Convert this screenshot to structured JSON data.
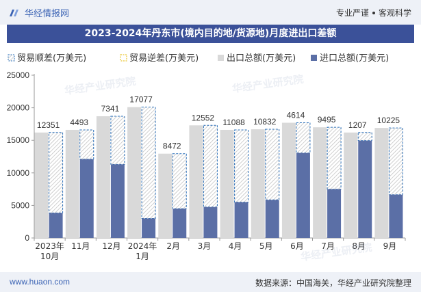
{
  "header": {
    "brand": "华经情报网",
    "slogan_left": "专业严谨",
    "slogan_right": "客观科学"
  },
  "title": "2023-2024年丹东市(境内目的地/货源地)月度进出口差额",
  "footer": {
    "url": "www.huaon.com",
    "source": "数据来源：中国海关，华经产业研究院整理"
  },
  "watermark": "华经产业研究院",
  "chart_data": {
    "type": "bar",
    "categories": [
      "2023年10月",
      "11月",
      "12月",
      "2024年1月",
      "2月",
      "3月",
      "4月",
      "5月",
      "6月",
      "7月",
      "8月",
      "9月"
    ],
    "category_lines": [
      [
        "2023年",
        "10月"
      ],
      [
        "11月"
      ],
      [
        "12月"
      ],
      [
        "2024年",
        "1月"
      ],
      [
        "2月"
      ],
      [
        "3月"
      ],
      [
        "4月"
      ],
      [
        "5月"
      ],
      [
        "6月"
      ],
      [
        "7月"
      ],
      [
        "8月"
      ],
      [
        "9月"
      ]
    ],
    "series": [
      {
        "name": "贸易顺差(万美元)",
        "values": [
          12351,
          4493,
          7341,
          17077,
          8472,
          12552,
          11088,
          10832,
          4614,
          9495,
          1207,
          10225
        ]
      },
      {
        "name": "贸易逆差(万美元)",
        "values": [
          0,
          0,
          0,
          0,
          0,
          0,
          0,
          0,
          0,
          0,
          0,
          0
        ]
      },
      {
        "name": "出口总额(万美元)",
        "values": [
          16200,
          16600,
          18700,
          20100,
          12950,
          17300,
          16600,
          16700,
          17700,
          17000,
          16200,
          16900
        ]
      },
      {
        "name": "进口总额(万美元)",
        "values": [
          3850,
          12100,
          11300,
          3000,
          4500,
          4750,
          5500,
          5850,
          13050,
          7500,
          14950,
          6650
        ]
      }
    ],
    "data_labels": [
      "12351",
      "4493",
      "7341",
      "17077",
      "8472",
      "12552",
      "11088",
      "10832",
      "4614",
      "9495",
      "1207",
      "10225"
    ],
    "yticks": [
      "0",
      "5000",
      "10000",
      "15000",
      "20000",
      "25000"
    ],
    "ylim": [
      0,
      25000
    ],
    "grid": false,
    "legend_position": "top",
    "colors": {
      "surplus_border": "#2a6fb8",
      "deficit_border": "#e6b800",
      "export": "#d9d9d9",
      "import": "#5b6fa6"
    }
  }
}
